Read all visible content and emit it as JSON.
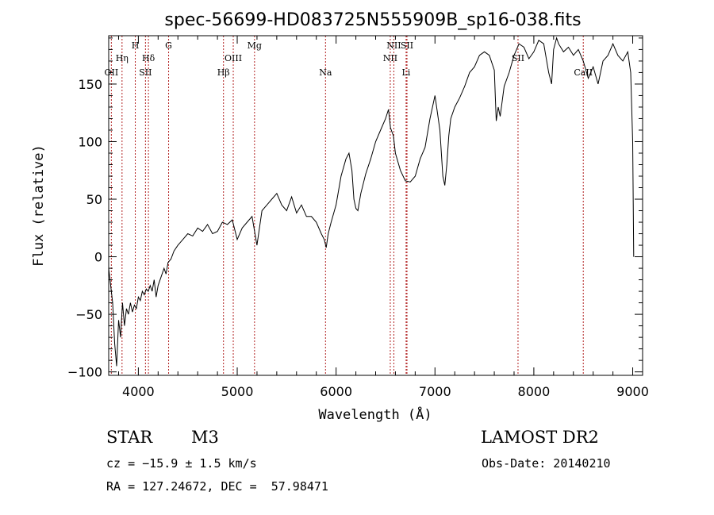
{
  "chart_data": {
    "type": "line",
    "title": "spec-56699-HD083725N555909B_sp16-038.fits",
    "xlabel": "Wavelength (Å)",
    "ylabel": "Flux (relative)",
    "xlim": [
      3700,
      9100
    ],
    "ylim": [
      -103,
      192
    ],
    "xticks": [
      4000,
      5000,
      6000,
      7000,
      8000,
      9000
    ],
    "yticks": [
      -100,
      -50,
      0,
      50,
      100,
      150
    ],
    "grid": false,
    "line_color": "#000000",
    "marker_color": "#b22222",
    "series": [
      {
        "x": [
          3700,
          3720,
          3740,
          3760,
          3780,
          3800,
          3820,
          3840,
          3860,
          3880,
          3900,
          3920,
          3940,
          3960,
          3980,
          4000,
          4020,
          4040,
          4060,
          4080,
          4100,
          4120,
          4140,
          4160,
          4180,
          4200,
          4220,
          4240,
          4260,
          4280,
          4300,
          4330,
          4360,
          4400,
          4450,
          4500,
          4550,
          4600,
          4650,
          4700,
          4750,
          4800,
          4850,
          4900,
          4950,
          5000,
          5050,
          5100,
          5150,
          5200,
          5250,
          5300,
          5350,
          5400,
          5450,
          5500,
          5550,
          5600,
          5650,
          5700,
          5750,
          5800,
          5850,
          5880,
          5900,
          5920,
          5950,
          6000,
          6050,
          6100,
          6130,
          6160,
          6180,
          6200,
          6220,
          6250,
          6300,
          6350,
          6400,
          6450,
          6500,
          6530,
          6550,
          6580,
          6600,
          6650,
          6700,
          6750,
          6800,
          6850,
          6900,
          6950,
          7000,
          7050,
          7080,
          7100,
          7120,
          7140,
          7160,
          7200,
          7250,
          7300,
          7350,
          7400,
          7450,
          7500,
          7550,
          7600,
          7620,
          7640,
          7660,
          7680,
          7700,
          7750,
          7800,
          7850,
          7900,
          7950,
          8000,
          8050,
          8100,
          8150,
          8180,
          8200,
          8230,
          8250,
          8300,
          8350,
          8400,
          8450,
          8500,
          8550,
          8600,
          8650,
          8700,
          8750,
          8800,
          8850,
          8900,
          8950,
          8980,
          9000,
          9010
        ],
        "y": [
          -10,
          -25,
          -40,
          -75,
          -95,
          -55,
          -70,
          -40,
          -60,
          -45,
          -50,
          -40,
          -48,
          -42,
          -45,
          -35,
          -38,
          -30,
          -33,
          -28,
          -30,
          -25,
          -30,
          -20,
          -35,
          -25,
          -20,
          -15,
          -10,
          -15,
          -5,
          -2,
          5,
          10,
          15,
          20,
          18,
          25,
          22,
          28,
          20,
          22,
          30,
          28,
          32,
          15,
          25,
          30,
          35,
          10,
          40,
          45,
          50,
          55,
          45,
          40,
          52,
          38,
          45,
          35,
          35,
          30,
          20,
          15,
          8,
          20,
          30,
          45,
          70,
          85,
          90,
          75,
          50,
          42,
          40,
          55,
          72,
          85,
          100,
          110,
          120,
          128,
          112,
          105,
          90,
          75,
          66,
          65,
          70,
          85,
          95,
          120,
          140,
          110,
          70,
          62,
          80,
          105,
          120,
          130,
          138,
          148,
          160,
          165,
          175,
          178,
          175,
          162,
          118,
          130,
          122,
          135,
          148,
          160,
          175,
          185,
          182,
          172,
          178,
          188,
          185,
          160,
          150,
          180,
          190,
          185,
          178,
          182,
          175,
          180,
          170,
          155,
          165,
          150,
          170,
          175,
          185,
          175,
          170,
          178,
          160,
          100,
          0
        ]
      }
    ],
    "spectral_lines": [
      {
        "name": "OII",
        "wavelength": 3727,
        "label_row": 3
      },
      {
        "name": "Hη",
        "wavelength": 3835,
        "label_row": 1
      },
      {
        "name": "H",
        "wavelength": 3969,
        "label_row": 0
      },
      {
        "name": "SII",
        "wavelength": 4072,
        "label_row": 3
      },
      {
        "name": "Hδ",
        "wavelength": 4102,
        "label_row": 1
      },
      {
        "name": "G",
        "wavelength": 4306,
        "label_row": 0
      },
      {
        "name": "Hβ",
        "wavelength": 4861,
        "label_row": 3
      },
      {
        "name": "OIII",
        "wavelength": 4960,
        "label_row": 1
      },
      {
        "name": "Mg",
        "wavelength": 5175,
        "label_row": 0
      },
      {
        "name": "Na",
        "wavelength": 5893,
        "label_row": 3
      },
      {
        "name": "NII",
        "wavelength": 6548,
        "label_row": 1
      },
      {
        "name": "NII",
        "wavelength": 6584,
        "label_row": 0
      },
      {
        "name": "Li",
        "wavelength": 6708,
        "label_row": 3
      },
      {
        "name": "SII",
        "wavelength": 6717,
        "label_row": 0
      },
      {
        "name": "SII",
        "wavelength": 7840,
        "label_row": 1
      },
      {
        "name": "CaII",
        "wavelength": 8500,
        "label_row": 3
      }
    ]
  },
  "info": {
    "object_class": "STAR",
    "subclass": "M3",
    "survey": "LAMOST DR2",
    "velocity": "cz = −15.9 ± 1.5 km/s",
    "obs_date": "Obs-Date: 20140210",
    "coords": "RA = 127.24672, DEC =  57.98471"
  }
}
